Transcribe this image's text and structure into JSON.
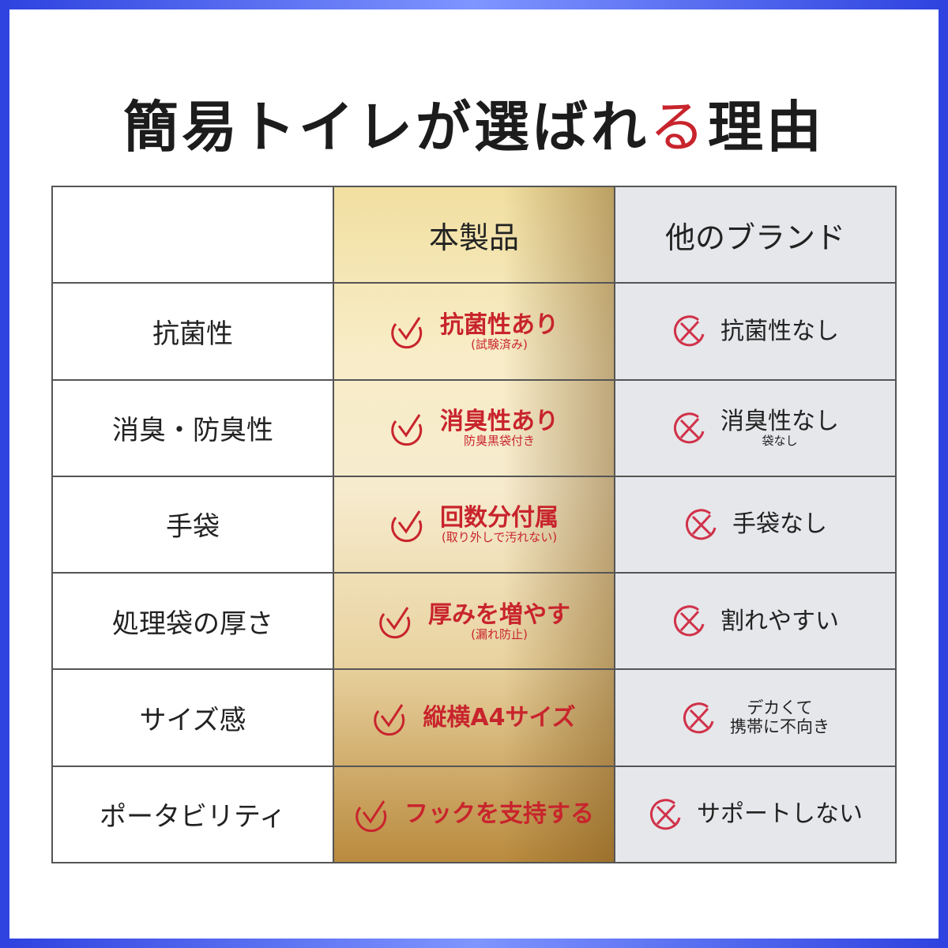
{
  "title": {
    "before": "簡易トイレが選ば",
    "mid1": "れ",
    "accent": "る",
    "after": "理由"
  },
  "colors": {
    "accent": "#c8242d",
    "frame": "#3a52e8",
    "gold": "#f1dfa0",
    "other_bg": "#e6e7ea"
  },
  "headers": {
    "feature": "",
    "ours": "本製品",
    "other": "他のブランド"
  },
  "icons": {
    "ours": "check-circle-icon",
    "other": "cross-circle-icon"
  },
  "rows": [
    {
      "feature": "抗菌性",
      "ours_main": "抗菌性あり",
      "ours_sub": "(試験済み)",
      "other_main": "抗菌性なし",
      "other_sub": ""
    },
    {
      "feature": "消臭・防臭性",
      "ours_main": "消臭性あり",
      "ours_sub": "防臭黒袋付き",
      "other_main": "消臭性なし",
      "other_sub": "袋なし"
    },
    {
      "feature": "手袋",
      "ours_main": "回数分付属",
      "ours_sub": "(取り外しで汚れない)",
      "other_main": "手袋なし",
      "other_sub": ""
    },
    {
      "feature": "処理袋の厚さ",
      "ours_main": "厚みを増やす",
      "ours_sub": "(漏れ防止)",
      "other_main": "割れやすい",
      "other_sub": ""
    },
    {
      "feature": "サイズ感",
      "ours_main": "縦横A4サイズ",
      "ours_sub": "",
      "other_main": "デカくて",
      "other_sub": "携帯に不向き"
    },
    {
      "feature": "ポータビリティ",
      "ours_main": "フックを支持する",
      "ours_sub": "",
      "other_main": "サポートしない",
      "other_sub": ""
    }
  ]
}
